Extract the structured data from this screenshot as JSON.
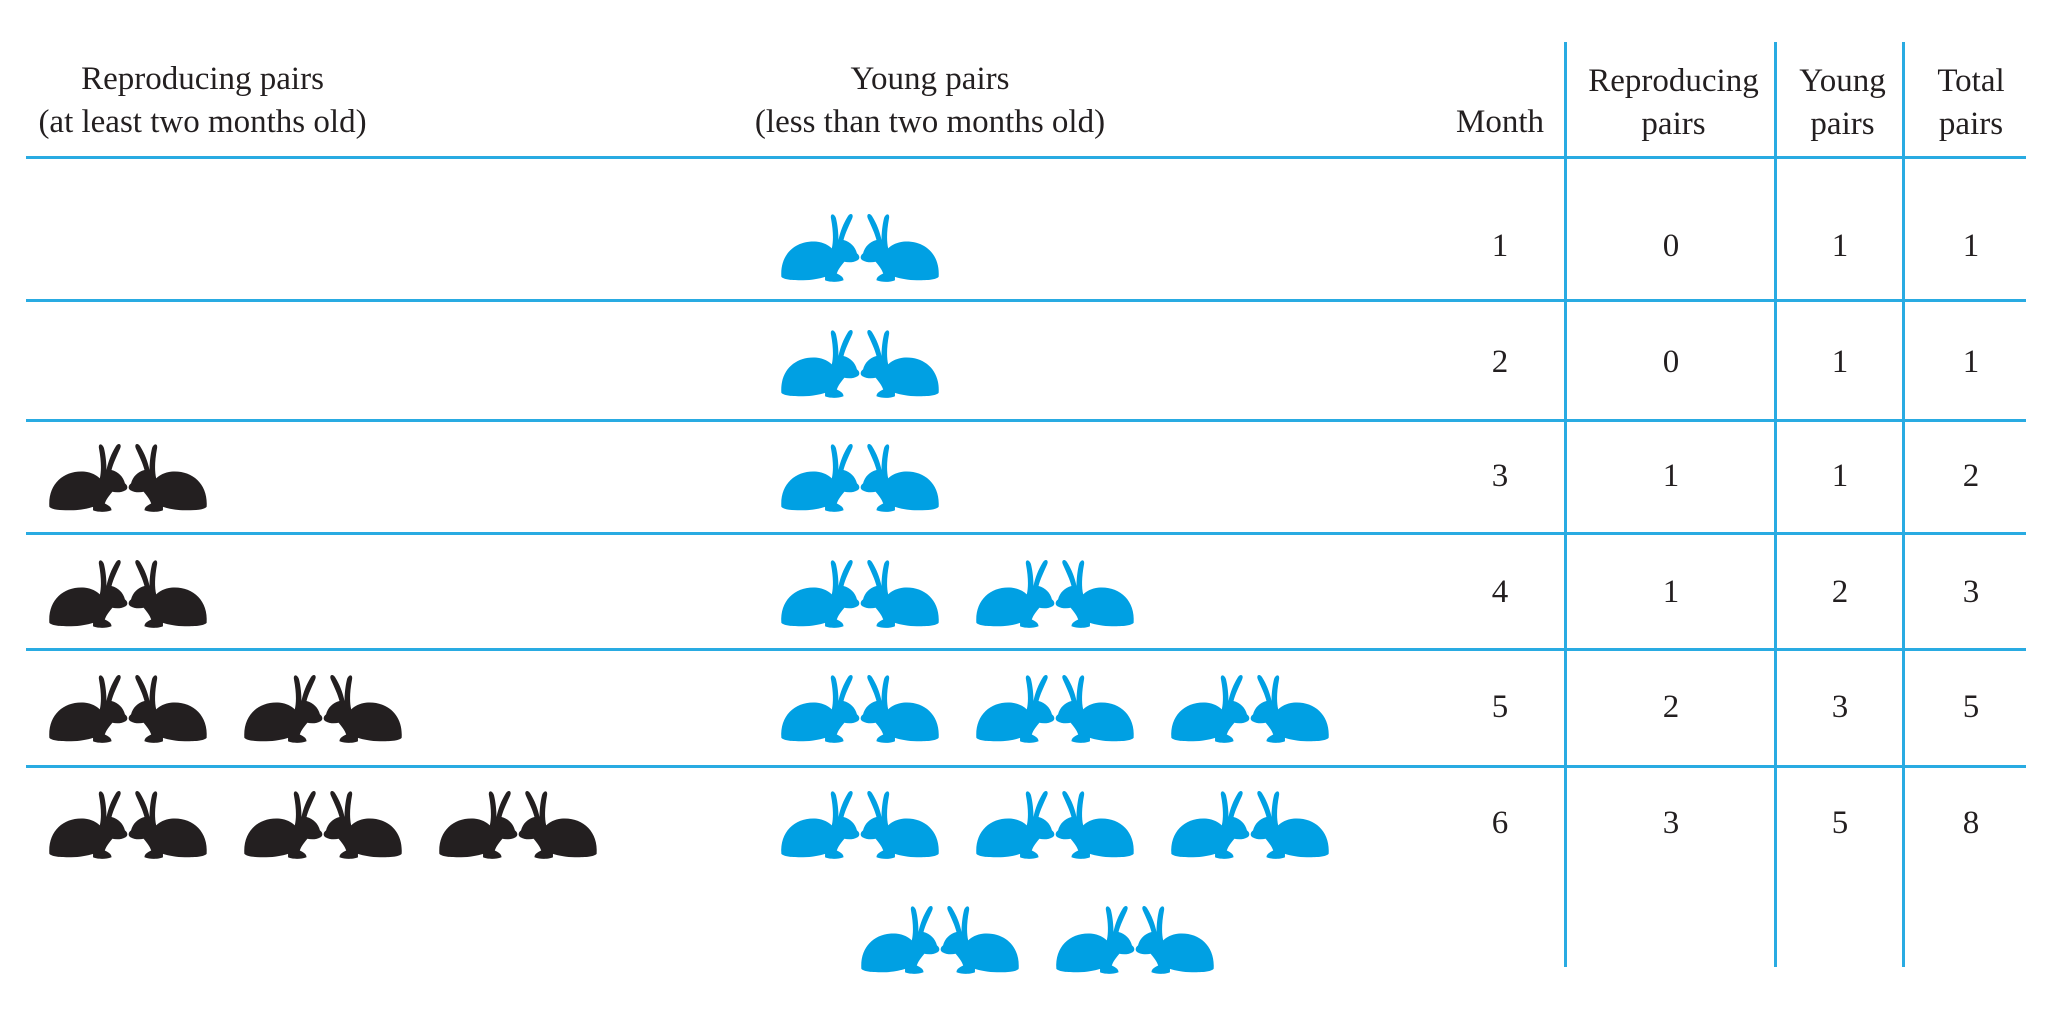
{
  "headers": {
    "reproducing_pairs": {
      "line1": "Reproducing pairs",
      "line2": "(at least two months old)"
    },
    "young_pairs": {
      "line1": "Young pairs",
      "line2": "(less than two months old)"
    },
    "month": "Month",
    "col_reproducing": {
      "line1": "Reproducing",
      "line2": "pairs"
    },
    "col_young": {
      "line1": "Young",
      "line2": "pairs"
    },
    "col_total": {
      "line1": "Total",
      "line2": "pairs"
    }
  },
  "rows": [
    {
      "month": "1",
      "reproducing": "0",
      "young": "1",
      "total": "1",
      "adult_pairs": 0,
      "young_pairs": 1
    },
    {
      "month": "2",
      "reproducing": "0",
      "young": "1",
      "total": "1",
      "adult_pairs": 0,
      "young_pairs": 1
    },
    {
      "month": "3",
      "reproducing": "1",
      "young": "1",
      "total": "2",
      "adult_pairs": 1,
      "young_pairs": 1
    },
    {
      "month": "4",
      "reproducing": "1",
      "young": "2",
      "total": "3",
      "adult_pairs": 1,
      "young_pairs": 2
    },
    {
      "month": "5",
      "reproducing": "2",
      "young": "3",
      "total": "5",
      "adult_pairs": 2,
      "young_pairs": 3
    },
    {
      "month": "6",
      "reproducing": "3",
      "young": "5",
      "total": "8",
      "adult_pairs": 3,
      "young_pairs": 5
    }
  ],
  "colors": {
    "rule": "#29abe2",
    "adult_rabbit": "#231f20",
    "young_rabbit": "#00a0e3"
  },
  "icons": {
    "rabbit_facing_right": "rabbit-right-icon",
    "rabbit_facing_left": "rabbit-left-icon"
  }
}
